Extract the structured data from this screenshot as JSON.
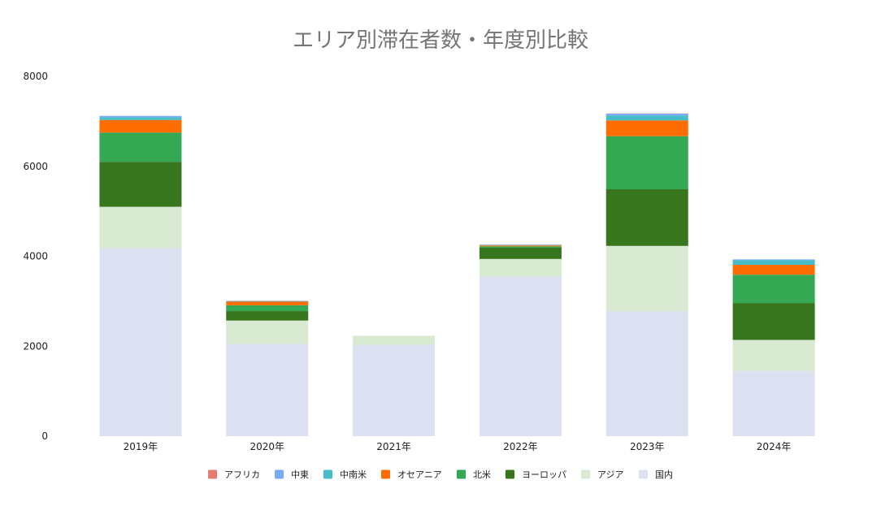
{
  "chart_data": {
    "type": "bar",
    "stacked": true,
    "title": "エリア別滞在者数・年度別比較",
    "xlabel": "",
    "ylabel": "",
    "ylim": [
      0,
      8000
    ],
    "yticks": [
      0,
      2000,
      4000,
      6000,
      8000
    ],
    "grid": false,
    "legend_position": "bottom",
    "categories": [
      "2019年",
      "2020年",
      "2021年",
      "2022年",
      "2023年",
      "2024年"
    ],
    "series": [
      {
        "name": "国内",
        "color": "#dbe1f0",
        "values": [
          4180,
          2050,
          2030,
          3550,
          2780,
          1450
        ]
      },
      {
        "name": "アジア",
        "color": "#d9ead3",
        "values": [
          920,
          520,
          200,
          390,
          1450,
          690
        ]
      },
      {
        "name": "ヨーロッパ",
        "color": "#38761d",
        "values": [
          1000,
          210,
          0,
          250,
          1260,
          820
        ]
      },
      {
        "name": "北米",
        "color": "#34a853",
        "values": [
          650,
          130,
          0,
          30,
          1180,
          630
        ]
      },
      {
        "name": "オセアニア",
        "color": "#ff6d01",
        "values": [
          280,
          80,
          0,
          20,
          350,
          220
        ]
      },
      {
        "name": "中南米",
        "color": "#46bdc6",
        "values": [
          60,
          10,
          0,
          10,
          110,
          100
        ]
      },
      {
        "name": "中東",
        "color": "#7baaf7",
        "values": [
          30,
          5,
          0,
          5,
          40,
          20
        ]
      },
      {
        "name": "アフリカ",
        "color": "#e67c73",
        "values": [
          0,
          5,
          0,
          5,
          5,
          0
        ]
      }
    ],
    "legend_order": [
      "アフリカ",
      "中東",
      "中南米",
      "オセアニア",
      "北米",
      "ヨーロッパ",
      "アジア",
      "国内"
    ]
  }
}
